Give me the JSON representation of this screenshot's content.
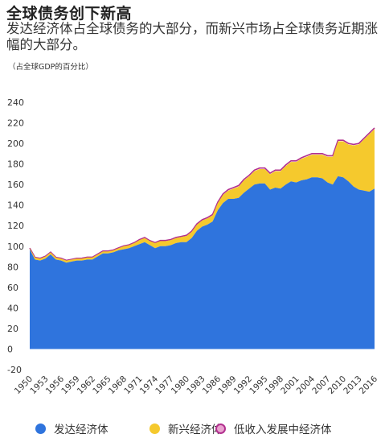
{
  "header": {
    "title": "全球债务创下新高",
    "subtitle": "发达经济体占全球债务的大部分，而新兴市场占全球债务近期涨幅的大部分。",
    "unit": "（占全球GDP的百分比）"
  },
  "colors": {
    "advanced": "#2f74dd",
    "emerging": "#f5c92d",
    "lowincome": "#b2308f"
  },
  "chart_data": {
    "type": "area",
    "stacked": true,
    "title": "全球债务创下新高",
    "ylim": [
      -20,
      240
    ],
    "yticks": [
      240,
      220,
      200,
      180,
      160,
      140,
      120,
      100,
      80,
      60,
      40,
      20,
      0,
      -20
    ],
    "xlim": [
      1950,
      2016
    ],
    "xticks": [
      1950,
      1953,
      1956,
      1959,
      1962,
      1965,
      1968,
      1971,
      1974,
      1977,
      1980,
      1983,
      1986,
      1989,
      1992,
      1995,
      1998,
      2001,
      2004,
      2007,
      2010,
      2013,
      2016
    ],
    "grid": false,
    "legend_position": "bottom",
    "x": [
      1950,
      1951,
      1952,
      1953,
      1954,
      1955,
      1956,
      1957,
      1958,
      1959,
      1960,
      1961,
      1962,
      1963,
      1964,
      1965,
      1966,
      1967,
      1968,
      1969,
      1970,
      1971,
      1972,
      1973,
      1974,
      1975,
      1976,
      1977,
      1978,
      1979,
      1980,
      1981,
      1982,
      1983,
      1984,
      1985,
      1986,
      1987,
      1988,
      1989,
      1990,
      1991,
      1992,
      1993,
      1994,
      1995,
      1996,
      1997,
      1998,
      1999,
      2000,
      2001,
      2002,
      2003,
      2004,
      2005,
      2006,
      2007,
      2008,
      2009,
      2010,
      2011,
      2012,
      2013,
      2014,
      2015,
      2016
    ],
    "series": [
      {
        "name": "发达经济体",
        "values": [
          97,
          87,
          86,
          88,
          92,
          87,
          86,
          84,
          85,
          86,
          86,
          87,
          87,
          90,
          93,
          93,
          94,
          96,
          97,
          98,
          100,
          102,
          104,
          101,
          98,
          100,
          100,
          101,
          103,
          104,
          104,
          108,
          115,
          119,
          121,
          124,
          135,
          142,
          146,
          146,
          147,
          152,
          156,
          160,
          161,
          161,
          155,
          157,
          156,
          160,
          163,
          162,
          164,
          165,
          167,
          167,
          166,
          162,
          160,
          168,
          167,
          163,
          158,
          155,
          154,
          153,
          156
        ]
      },
      {
        "name": "新兴经济体",
        "values": [
          1,
          2,
          2,
          2,
          2,
          2,
          2,
          2,
          2,
          2,
          2,
          2,
          2,
          2,
          2,
          2,
          2,
          2,
          3,
          3,
          3,
          4,
          4,
          4,
          5,
          5,
          5,
          5,
          5,
          5,
          6,
          6,
          6,
          6,
          6,
          6,
          7,
          8,
          8,
          10,
          11,
          12,
          12,
          13,
          14,
          14,
          15,
          16,
          17,
          18,
          19,
          20,
          21,
          22,
          22,
          22,
          23,
          25,
          27,
          34,
          35,
          36,
          40,
          44,
          50,
          56,
          58
        ]
      },
      {
        "name": "低收入发展中经济体",
        "values": [
          0.2,
          0.2,
          0.2,
          0.2,
          0.2,
          0.2,
          0.2,
          0.2,
          0.2,
          0.2,
          0.3,
          0.3,
          0.3,
          0.3,
          0.3,
          0.3,
          0.3,
          0.3,
          0.3,
          0.3,
          0.4,
          0.4,
          0.4,
          0.4,
          0.4,
          0.5,
          0.5,
          0.5,
          0.5,
          0.5,
          0.6,
          0.6,
          0.7,
          0.7,
          0.8,
          0.8,
          0.9,
          0.9,
          1,
          1,
          1,
          1,
          1,
          1,
          1,
          1,
          1,
          1,
          1,
          1,
          1,
          1,
          1,
          1,
          1,
          1,
          1,
          1,
          1,
          1,
          1,
          1,
          1,
          1,
          1,
          1,
          1
        ]
      }
    ]
  }
}
